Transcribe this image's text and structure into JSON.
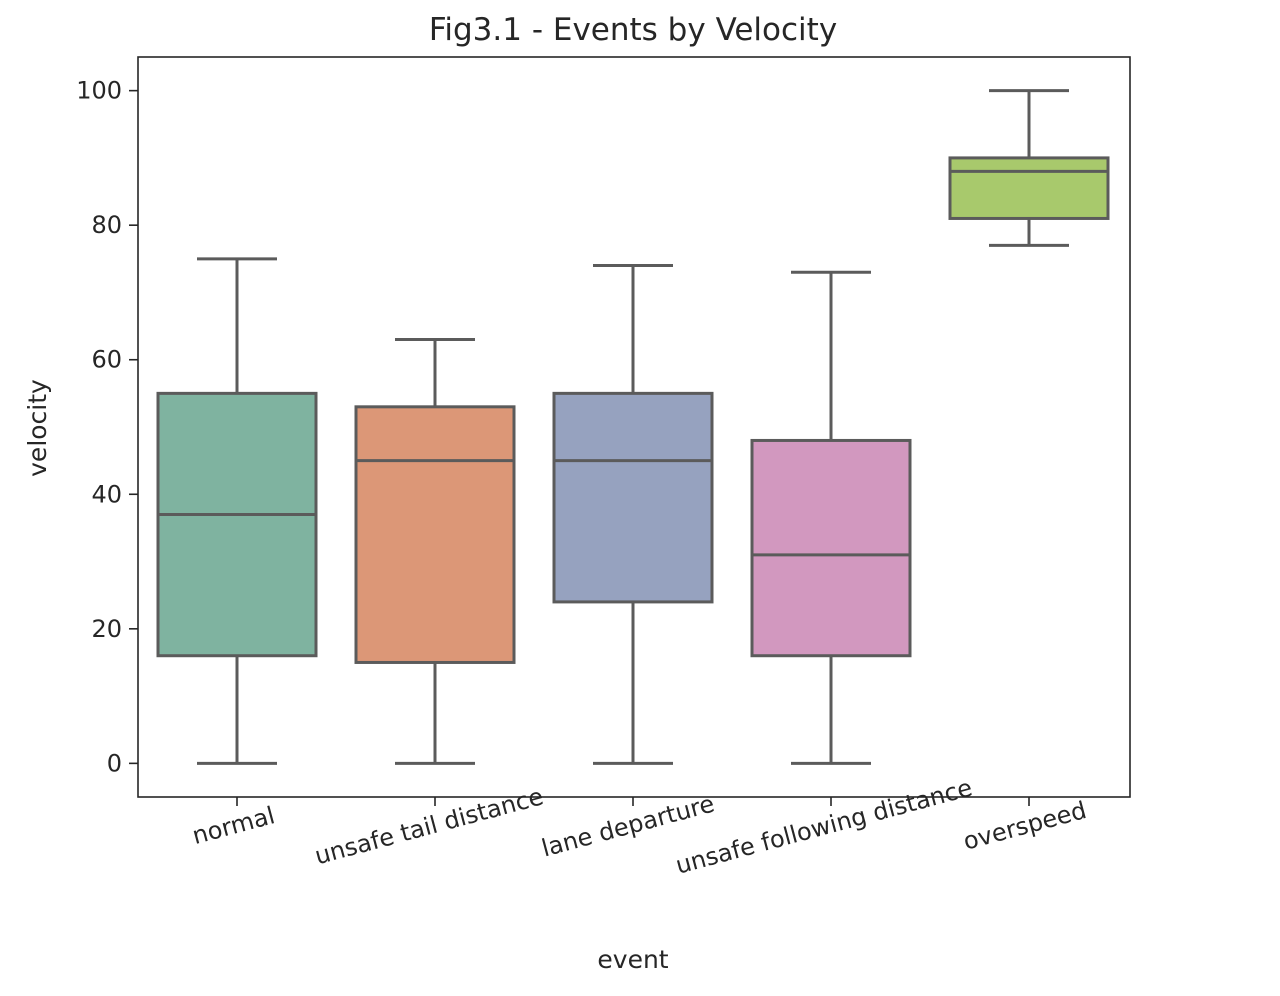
{
  "chart_data": {
    "type": "box",
    "title": "Fig3.1 - Events by Velocity",
    "xlabel": "event",
    "ylabel": "velocity",
    "ylim": [
      -5,
      105
    ],
    "yticks": [
      0,
      20,
      40,
      60,
      80,
      100
    ],
    "grid": false,
    "x_tick_rotation_deg": -15,
    "categories": [
      "normal",
      "unsafe tail distance",
      "lane departure",
      "unsafe following distance",
      "overspeed"
    ],
    "boxes": [
      {
        "category": "normal",
        "whisker_low": 0,
        "q1": 16,
        "median": 37,
        "q3": 55,
        "whisker_high": 75,
        "color": "#7fb3a0"
      },
      {
        "category": "unsafe tail distance",
        "whisker_low": 0,
        "q1": 15,
        "median": 45,
        "q3": 53,
        "whisker_high": 63,
        "color": "#dc9777"
      },
      {
        "category": "lane departure",
        "whisker_low": 0,
        "q1": 24,
        "median": 45,
        "q3": 55,
        "whisker_high": 74,
        "color": "#96a2bf"
      },
      {
        "category": "unsafe following distance",
        "whisker_low": 0,
        "q1": 16,
        "median": 31,
        "q3": 48,
        "whisker_high": 73,
        "color": "#d298bf"
      },
      {
        "category": "overspeed",
        "whisker_low": 77,
        "q1": 81,
        "median": 88,
        "q3": 90,
        "whisker_high": 100,
        "color": "#a8c96c"
      }
    ],
    "line_color": "#5b5b5b"
  }
}
